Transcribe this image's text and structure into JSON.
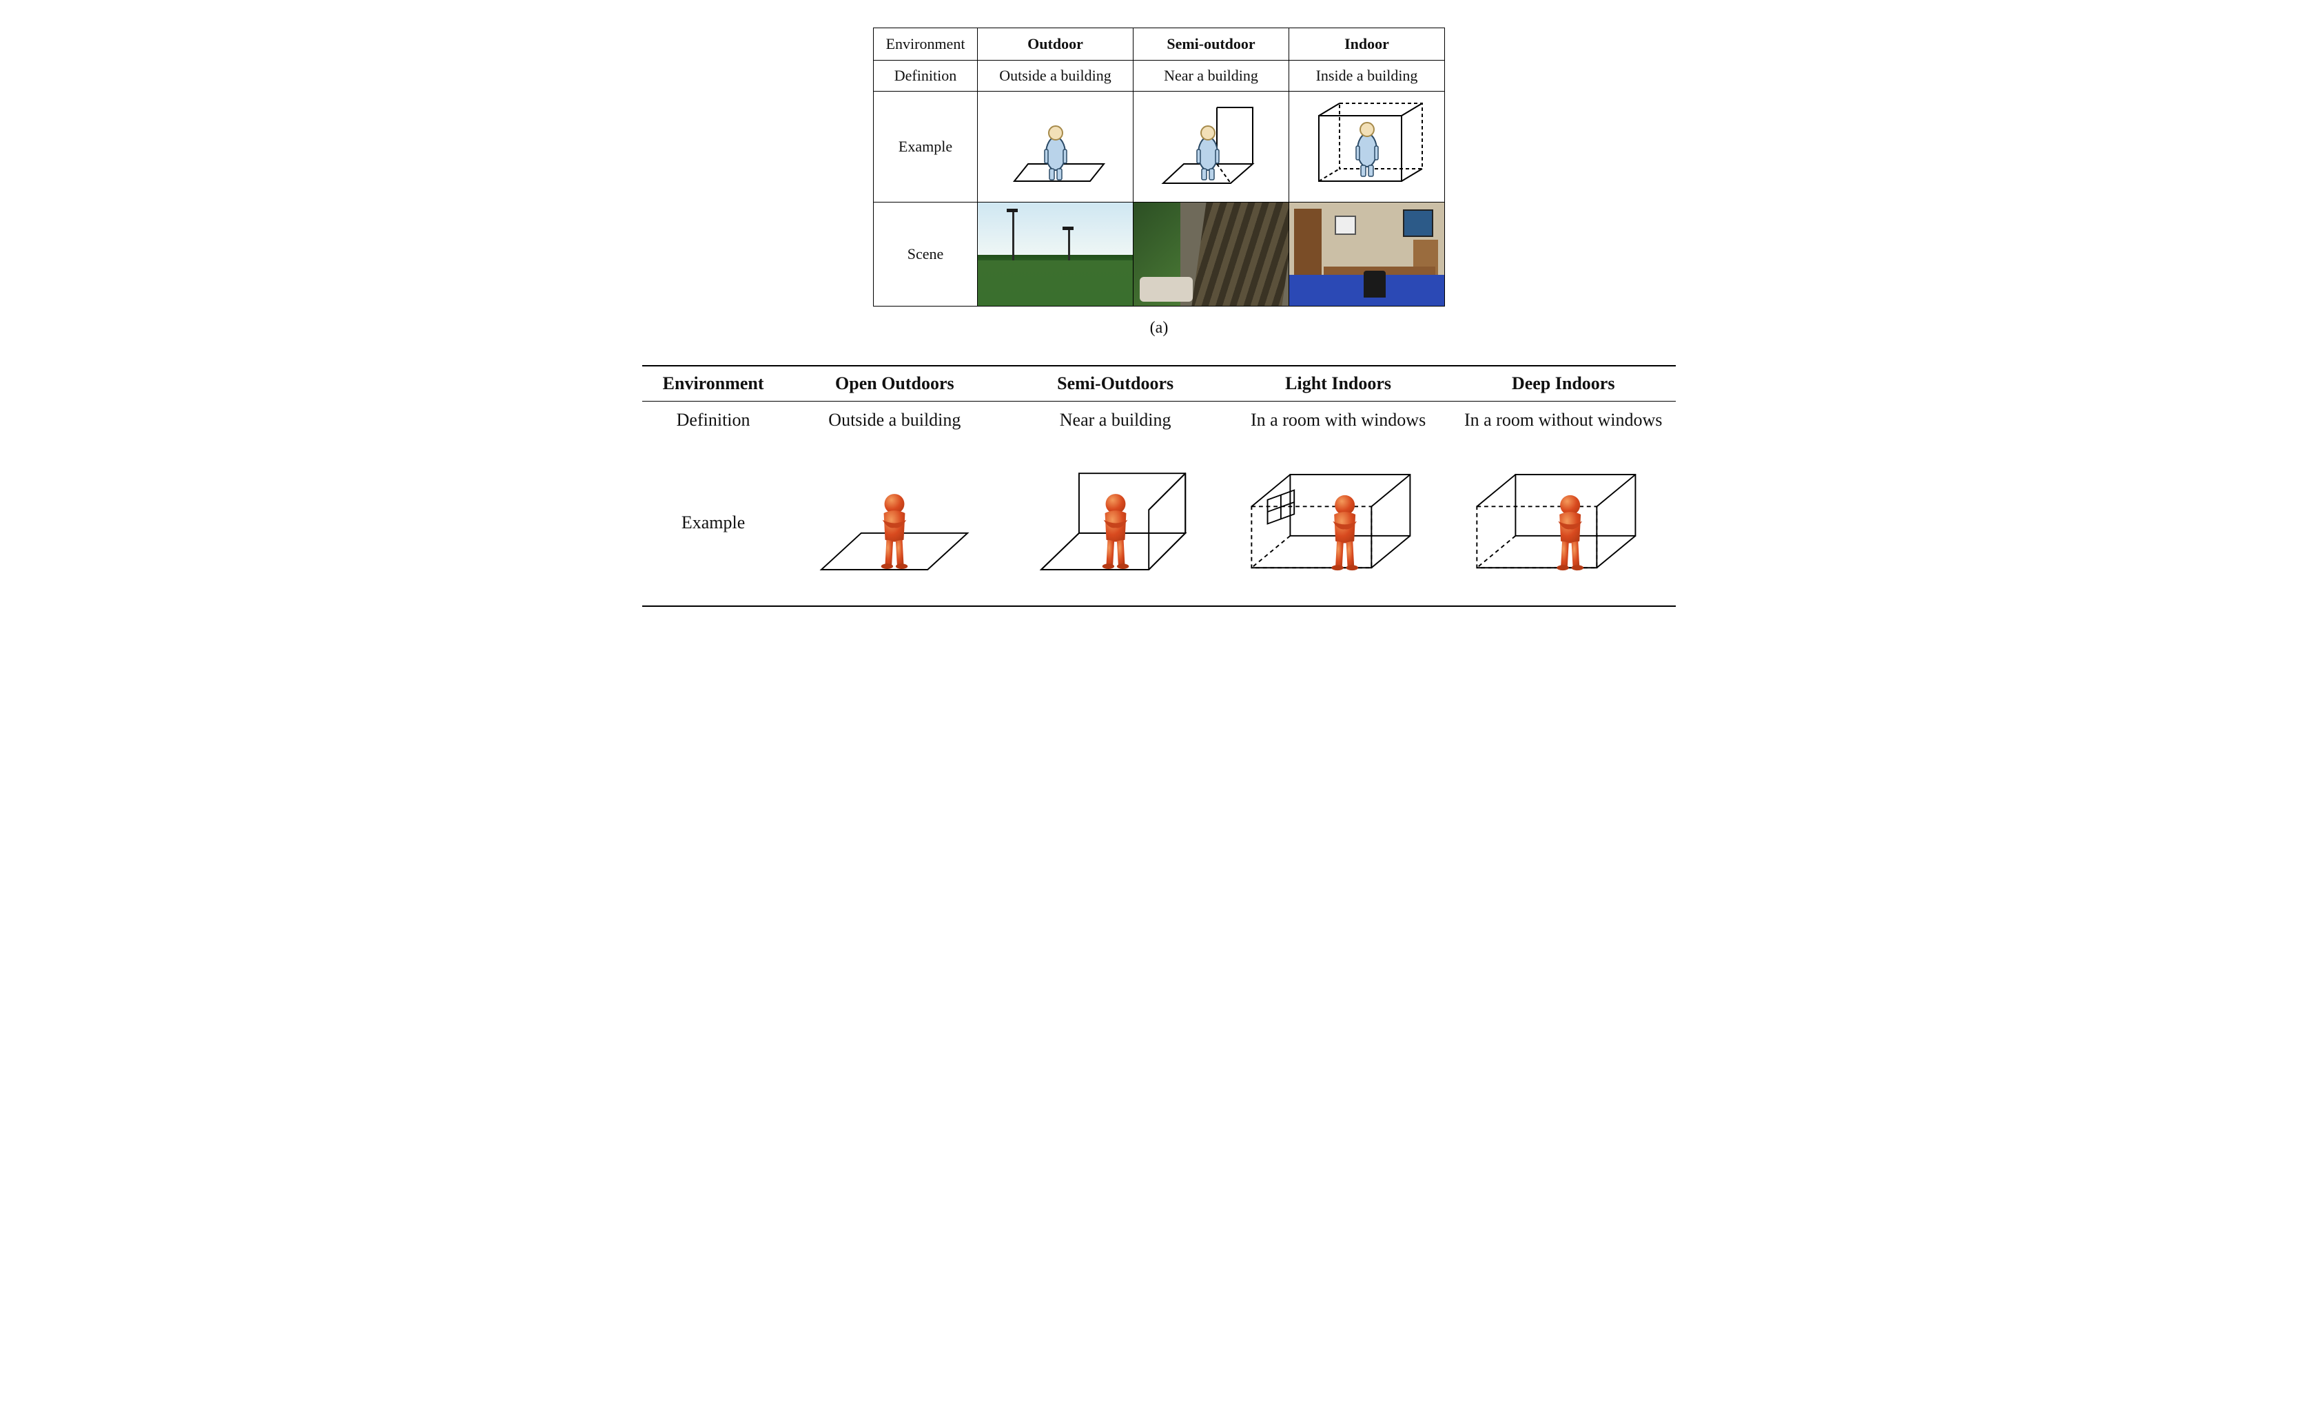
{
  "top": {
    "row_labels": {
      "env": "Environment",
      "def": "Definition",
      "example": "Example",
      "scene": "Scene"
    },
    "columns": [
      {
        "header": "Outdoor",
        "definition": "Outside a building"
      },
      {
        "header": "Semi-outdoor",
        "definition": "Near a building"
      },
      {
        "header": "Indoor",
        "definition": "Inside a building"
      }
    ],
    "caption": "(a)",
    "colors": {
      "border": "#000000",
      "person_body": "#b9d3ea",
      "person_outline": "#2b4a66",
      "person_head": "#f2e0b8",
      "person_head_outline": "#a68a4a",
      "line": "#000000"
    }
  },
  "bottom": {
    "row_labels": {
      "env": "Environment",
      "def": "Definition",
      "example": "Example"
    },
    "columns": [
      {
        "header": "Open Outdoors",
        "definition": "Outside a building"
      },
      {
        "header": "Semi-Outdoors",
        "definition": "Near a building"
      },
      {
        "header": "Light Indoors",
        "definition": "In a room with windows"
      },
      {
        "header": "Deep Indoors",
        "definition": "In a room without windows"
      }
    ],
    "colors": {
      "rule": "#000000",
      "person_fill": "#d84a1f",
      "person_highlight": "#f07a3c",
      "line": "#000000"
    }
  }
}
